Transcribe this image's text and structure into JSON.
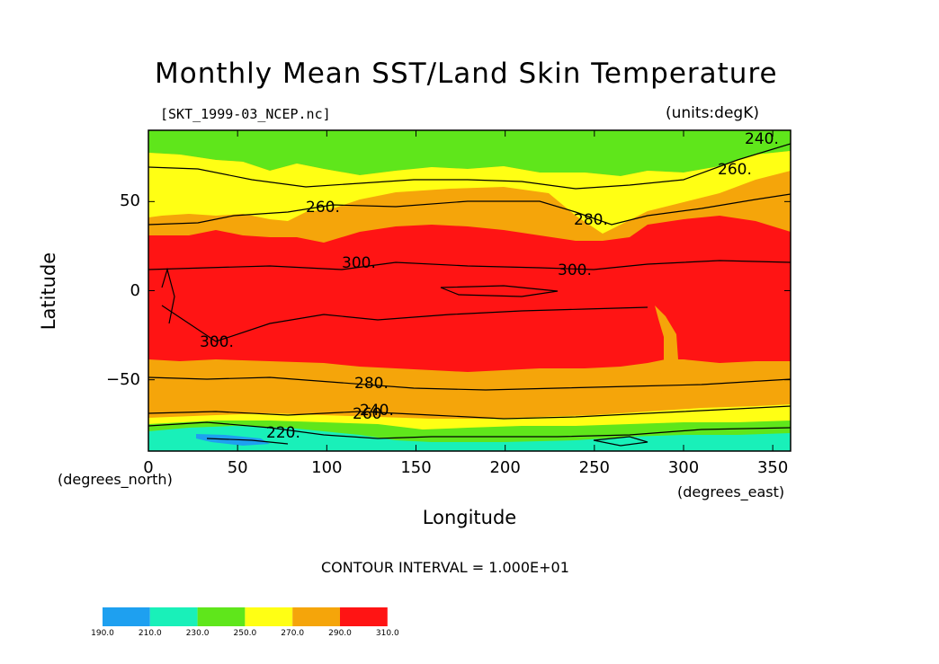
{
  "chart_data": {
    "type": "heatmap",
    "title": "Monthly Mean SST/Land Skin Temperature",
    "subtitle": "[SKT_1999-03_NCEP.nc]",
    "units": "(units:degK)",
    "xlabel": "Longitude",
    "ylabel": "Latitude",
    "x_unit_label": "(degrees_east)",
    "y_unit_label": "(degrees_north)",
    "xlim": [
      0,
      360
    ],
    "ylim": [
      -90,
      90
    ],
    "x_ticks": [
      "0",
      "50",
      "100",
      "150",
      "200",
      "250",
      "300",
      "350"
    ],
    "y_ticks": [
      "50",
      "0",
      "−50"
    ],
    "contour_interval_text": "CONTOUR INTERVAL = 1.000E+01",
    "contour_labels": [
      "240.",
      "260.",
      "260.",
      "280.",
      "300.",
      "300.",
      "300.",
      "280.",
      "260",
      "240.",
      "220."
    ],
    "colorbar": {
      "levels": [
        "190.0",
        "210.0",
        "230.0",
        "250.0",
        "270.0",
        "290.0",
        "310.0"
      ],
      "colors": [
        "#1ea0f0",
        "#19f0b9",
        "#5fe61b",
        "#ffff14",
        "#f5a50a",
        "#ff1414"
      ]
    },
    "zonal_bands_degK": [
      {
        "lat_from": 90,
        "lat_to": 72,
        "band": "240-260 (green)"
      },
      {
        "lat_from": 72,
        "lat_to": 55,
        "band": "260-280 (yellow)"
      },
      {
        "lat_from": 55,
        "lat_to": 32,
        "band": "270-290 (orange)"
      },
      {
        "lat_from": 32,
        "lat_to": -40,
        "band": "290-310 (red)"
      },
      {
        "lat_from": -40,
        "lat_to": -70,
        "band": "270-290 (orange)"
      },
      {
        "lat_from": -70,
        "lat_to": -76,
        "band": "260-280 (yellow)"
      },
      {
        "lat_from": -76,
        "lat_to": -90,
        "band": "210-250 (cyan/green)"
      }
    ]
  }
}
